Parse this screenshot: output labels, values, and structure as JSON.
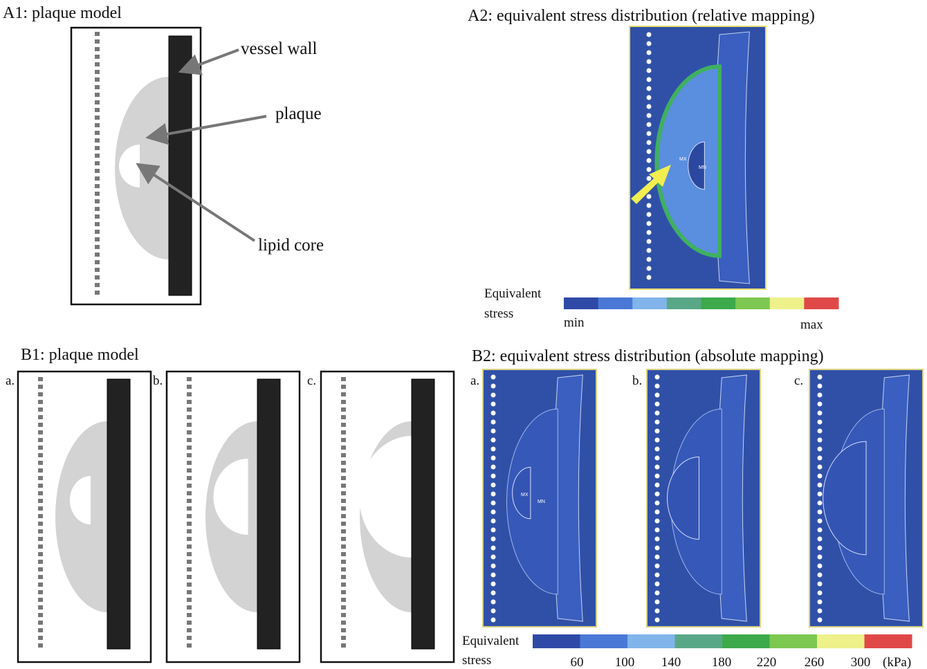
{
  "a1": {
    "title": "A1: plaque model",
    "labels": [
      "vessel wall",
      "plaque",
      "lipid core"
    ]
  },
  "a2": {
    "title": "A2: equivalent stress distribution (relative mapping)",
    "markers": [
      "MX",
      "MN"
    ],
    "legend": {
      "title_lines": [
        "Equivalent",
        "stress"
      ],
      "min": "min",
      "max": "max"
    }
  },
  "b1": {
    "title": "B1: plaque model",
    "subpanels": [
      "a.",
      "b.",
      "c."
    ]
  },
  "b2": {
    "title": "B2: equivalent stress distribution (absolute mapping)",
    "subpanels": [
      "a.",
      "b.",
      "c."
    ],
    "markers": [
      "MX",
      "MN"
    ],
    "legend": {
      "title_lines": [
        "Equivalent",
        "stress"
      ],
      "ticks": [
        "60",
        "100",
        "140",
        "180",
        "220",
        "260",
        "300"
      ],
      "unit": "(kPa)"
    }
  }
}
